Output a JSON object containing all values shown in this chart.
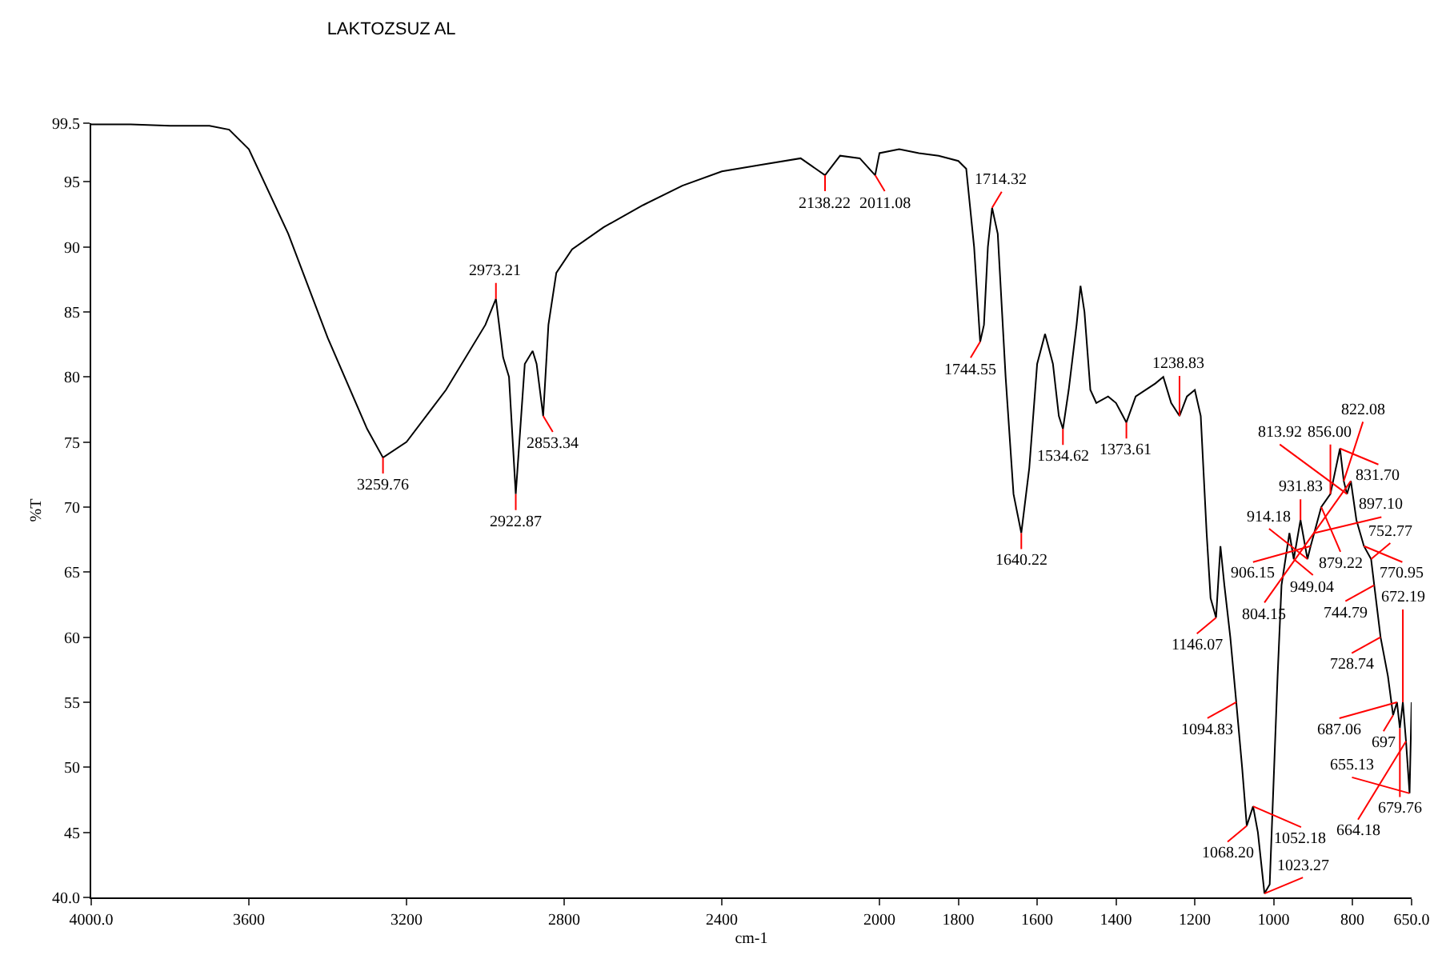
{
  "chart_data": {
    "type": "line",
    "title": "LAKTOZSUZ AL",
    "xlabel": "cm-1",
    "ylabel": "%T",
    "xlim": [
      4000,
      650
    ],
    "ylim": [
      40,
      99.5
    ],
    "xticks": [
      {
        "value": 4000,
        "label": "4000.0"
      },
      3600,
      3200,
      2800,
      2400,
      2000,
      1800,
      1600,
      1400,
      1200,
      1000,
      800,
      {
        "value": 650,
        "label": "650.0"
      }
    ],
    "yticks": [
      {
        "value": 40,
        "label": "40.0"
      },
      45,
      50,
      55,
      60,
      65,
      70,
      75,
      80,
      85,
      90,
      95,
      99.5
    ],
    "grid": false,
    "marker": "none",
    "line_style": "solid",
    "series": [
      {
        "color": "#000000",
        "x": [
          4000,
          3900,
          3800,
          3700,
          3650,
          3600,
          3500,
          3400,
          3300,
          3259.76,
          3200,
          3100,
          3000,
          2973.21,
          2955,
          2940,
          2922.87,
          2900,
          2880,
          2870,
          2853.34,
          2840,
          2820,
          2780,
          2700,
          2600,
          2500,
          2400,
          2300,
          2200,
          2138.22,
          2100,
          2050,
          2011.08,
          2000,
          1950,
          1900,
          1850,
          1800,
          1780,
          1760,
          1744.55,
          1735,
          1725,
          1714.32,
          1700,
          1680,
          1660,
          1640.22,
          1620,
          1600,
          1580,
          1560,
          1545,
          1534.62,
          1520,
          1500,
          1490,
          1480,
          1465,
          1450,
          1420,
          1400,
          1373.61,
          1350,
          1300,
          1280,
          1260,
          1238.83,
          1220,
          1200,
          1185,
          1170,
          1160,
          1146.07,
          1135,
          1125,
          1110,
          1094.83,
          1080,
          1068.2,
          1052.18,
          1040,
          1023.27,
          1010,
          1000,
          990,
          980,
          960,
          949.04,
          931.83,
          914.18,
          906.15,
          897.1,
          879.22,
          856,
          831.7,
          822.08,
          813.92,
          804.15,
          790,
          770.95,
          752.77,
          744.79,
          728.74,
          710,
          697,
          687.06,
          679.76,
          672.19,
          664.18,
          655.13,
          650
        ],
        "values": [
          99.4,
          99.4,
          99.3,
          99.3,
          99,
          97.5,
          91,
          83,
          76,
          73.8,
          75,
          79,
          84,
          86,
          81.5,
          80,
          71,
          81,
          82,
          81,
          77,
          84,
          88,
          89.8,
          91.5,
          93.2,
          94.7,
          95.8,
          96.3,
          96.8,
          95.5,
          97,
          96.8,
          95.5,
          97.2,
          97.5,
          97.2,
          97,
          96.6,
          96,
          90,
          82.7,
          84,
          90,
          93,
          91,
          80,
          71,
          68,
          73,
          81,
          83.3,
          81,
          77,
          76,
          79,
          84,
          87,
          85,
          79,
          78,
          78.5,
          78,
          76.5,
          78.5,
          79.5,
          80,
          78,
          77,
          78.5,
          79,
          77,
          68,
          63,
          61.5,
          67,
          64,
          60,
          55,
          50,
          45.5,
          47,
          45,
          40.3,
          41,
          49,
          57,
          64,
          68,
          66,
          69,
          66,
          67,
          68,
          70,
          71,
          74.5,
          72,
          71,
          72,
          69,
          67,
          66,
          64,
          60,
          57,
          54,
          55,
          53,
          55,
          52,
          48,
          55
        ]
      }
    ],
    "annotations": [
      {
        "text": "3259.76",
        "x": 3259.76,
        "y": 73.8
      },
      {
        "text": "2973.21",
        "x": 2973.21,
        "y": 86
      },
      {
        "text": "2922.87",
        "x": 2922.87,
        "y": 71
      },
      {
        "text": "2853.34",
        "x": 2853.34,
        "y": 77
      },
      {
        "text": "2138.22",
        "x": 2138.22,
        "y": 95.5
      },
      {
        "text": "2011.08",
        "x": 2011.08,
        "y": 95.5
      },
      {
        "text": "1744.55",
        "x": 1744.55,
        "y": 82.7
      },
      {
        "text": "1714.32",
        "x": 1714.32,
        "y": 93
      },
      {
        "text": "1640.22",
        "x": 1640.22,
        "y": 68
      },
      {
        "text": "1534.62",
        "x": 1534.62,
        "y": 76
      },
      {
        "text": "1373.61",
        "x": 1373.61,
        "y": 76.5
      },
      {
        "text": "1238.83",
        "x": 1238.83,
        "y": 77
      },
      {
        "text": "1146.07",
        "x": 1146.07,
        "y": 61.5
      },
      {
        "text": "1094.83",
        "x": 1094.83,
        "y": 55
      },
      {
        "text": "1068.20",
        "x": 1068.2,
        "y": 45.5
      },
      {
        "text": "1052.18",
        "x": 1052.18,
        "y": 47
      },
      {
        "text": "1023.27",
        "x": 1023.27,
        "y": 40.3
      },
      {
        "text": "949.04",
        "x": 949.04,
        "y": 66
      },
      {
        "text": "931.83",
        "x": 931.83,
        "y": 69
      },
      {
        "text": "914.18",
        "x": 914.18,
        "y": 66
      },
      {
        "text": "906.15",
        "x": 906.15,
        "y": 67
      },
      {
        "text": "897.10",
        "x": 897.1,
        "y": 68
      },
      {
        "text": "879.22",
        "x": 879.22,
        "y": 70
      },
      {
        "text": "856.00",
        "x": 856,
        "y": 71
      },
      {
        "text": "831.70",
        "x": 831.7,
        "y": 74.5
      },
      {
        "text": "822.08",
        "x": 822.08,
        "y": 72
      },
      {
        "text": "813.92",
        "x": 813.92,
        "y": 71
      },
      {
        "text": "804.15",
        "x": 804.15,
        "y": 72
      },
      {
        "text": "770.95",
        "x": 770.95,
        "y": 67
      },
      {
        "text": "752.77",
        "x": 752.77,
        "y": 66
      },
      {
        "text": "744.79",
        "x": 744.79,
        "y": 64
      },
      {
        "text": "728.74",
        "x": 728.74,
        "y": 60
      },
      {
        "text": "697",
        "x": 697,
        "y": 54
      },
      {
        "text": "687.06",
        "x": 687.06,
        "y": 55
      },
      {
        "text": "679.76",
        "x": 679.76,
        "y": 53
      },
      {
        "text": "672.19",
        "x": 672.19,
        "y": 55
      },
      {
        "text": "664.18",
        "x": 664.18,
        "y": 52
      },
      {
        "text": "655.13",
        "x": 655.13,
        "y": 48
      }
    ]
  }
}
